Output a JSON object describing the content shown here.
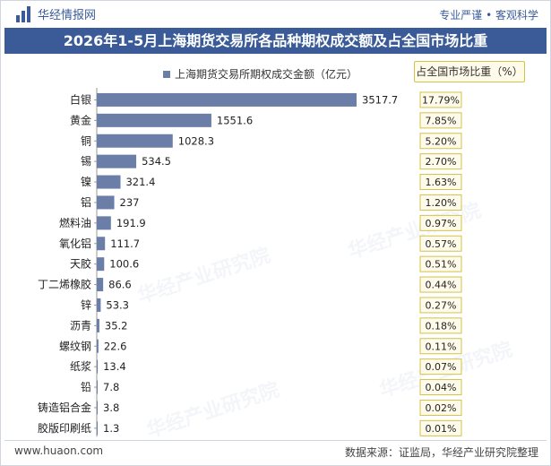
{
  "brand": {
    "name": "华经情报网"
  },
  "tagline": "专业严谨 • 客观科学",
  "watermark": "华经产业研究院",
  "chart_data": {
    "type": "bar",
    "orientation": "horizontal",
    "title": "2026年1-5月上海期货交易所各品种期权成交额及占全国市场比重",
    "categories": [
      "白银",
      "黄金",
      "铜",
      "锡",
      "镍",
      "铝",
      "燃料油",
      "氧化铝",
      "天胶",
      "丁二烯橡胶",
      "锌",
      "沥青",
      "螺纹钢",
      "纸浆",
      "铅",
      "铸造铝合金",
      "胶版印刷纸"
    ],
    "series": [
      {
        "name": "上海期货交易所期权成交金额（亿元）",
        "values": [
          3517.7,
          1551.6,
          1028.3,
          534.5,
          321.4,
          237,
          191.9,
          111.7,
          100.6,
          86.6,
          53.3,
          35.2,
          22.6,
          13.4,
          7.8,
          3.8,
          1.3
        ],
        "color": "#6a7ea8"
      },
      {
        "name": "占全国市场比重（%）",
        "values": [
          "17.79%",
          "7.85%",
          "5.20%",
          "2.70%",
          "1.63%",
          "1.20%",
          "0.97%",
          "0.57%",
          "0.51%",
          "0.44%",
          "0.27%",
          "0.18%",
          "0.11%",
          "0.07%",
          "0.04%",
          "0.02%",
          "0.01%"
        ],
        "color": "#d4c14b"
      }
    ],
    "bar_labels": [
      "3517.7",
      "1551.6",
      "1028.3",
      "534.5",
      "321.4",
      "237",
      "191.9",
      "111.7",
      "100.6",
      "86.6",
      "53.3",
      "35.2",
      "22.6",
      "13.4",
      "7.8",
      "3.8",
      "1.3"
    ],
    "legend_placement": "top",
    "grid": false
  },
  "footer": {
    "website": "www.huaon.com",
    "source": "数据来源：证监局，华经产业研究院整理"
  }
}
